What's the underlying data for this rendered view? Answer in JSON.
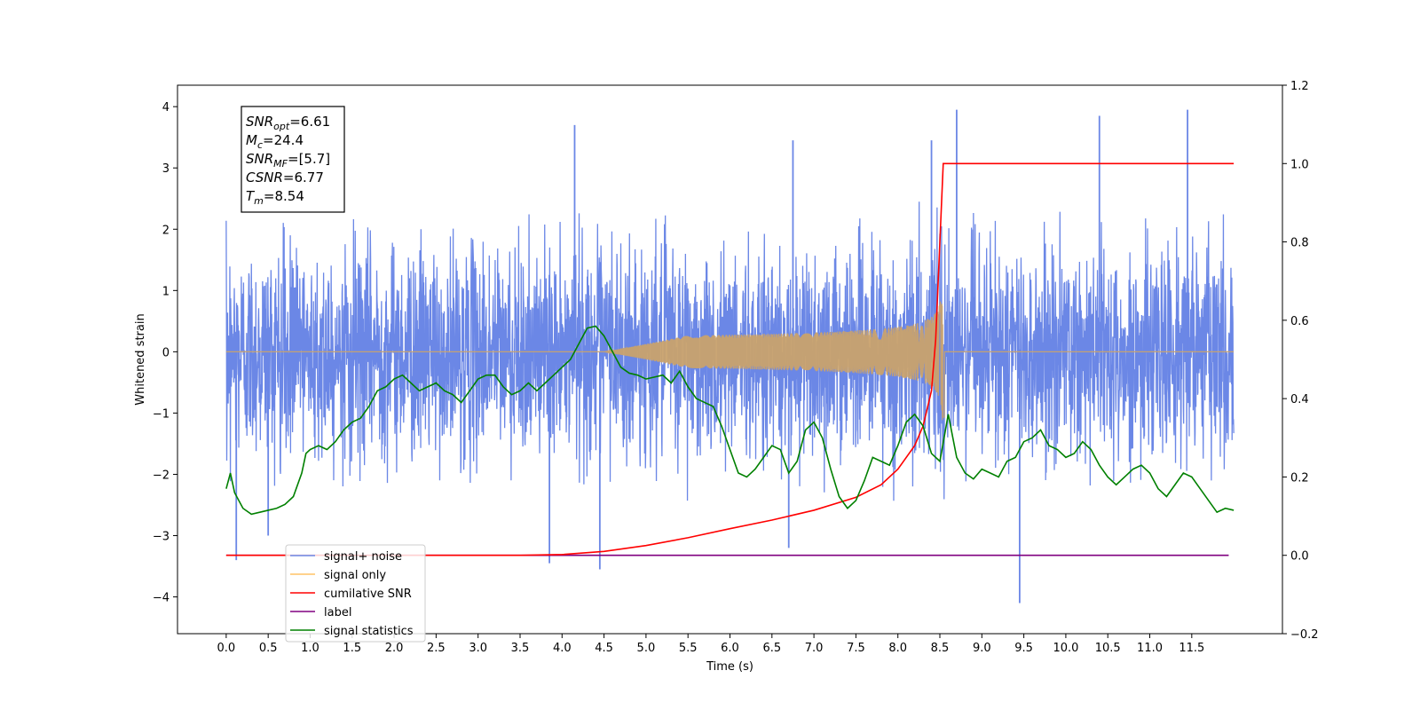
{
  "chart_data": {
    "type": "line",
    "title": "",
    "xlabel": "Time (s)",
    "ylabel": "Whitened strain",
    "xlim": [
      -0.58,
      12.58
    ],
    "ylim": [
      -4.6,
      4.35
    ],
    "y2lim": [
      -0.2,
      1.2
    ],
    "xticks": [
      0.0,
      0.5,
      1.0,
      1.5,
      2.0,
      2.5,
      3.0,
      3.5,
      4.0,
      4.5,
      5.0,
      5.5,
      6.0,
      6.5,
      7.0,
      7.5,
      8.0,
      8.5,
      9.0,
      9.5,
      10.0,
      10.5,
      11.0,
      11.5
    ],
    "xtick_labels": [
      "0.0",
      "0.5",
      "1.0",
      "1.5",
      "2.0",
      "2.5",
      "3.0",
      "3.5",
      "4.0",
      "4.5",
      "5.0",
      "5.5",
      "6.0",
      "6.5",
      "7.0",
      "7.5",
      "8.0",
      "8.5",
      "9.0",
      "9.5",
      "10.0",
      "10.5",
      "11.0",
      "11.5"
    ],
    "yticks": [
      -4,
      -3,
      -2,
      -1,
      0,
      1,
      2,
      3,
      4
    ],
    "ytick_labels": [
      "−4",
      "−3",
      "−2",
      "−1",
      "0",
      "1",
      "2",
      "3",
      "4"
    ],
    "y2ticks": [
      -0.2,
      0.0,
      0.2,
      0.4,
      0.6,
      0.8,
      1.0,
      1.2
    ],
    "y2tick_labels": [
      "−0.2",
      "0.0",
      "0.2",
      "0.4",
      "0.6",
      "0.8",
      "1.0",
      "1.2"
    ],
    "grid": false,
    "legend_position": "lower-left",
    "legend": [
      {
        "label": "signal+ noise",
        "color": "#6b87e6"
      },
      {
        "label": "signal only",
        "color": "#ffc466"
      },
      {
        "label": "cumilative SNR",
        "color": "#ff0000"
      },
      {
        "label": "label",
        "color": "#800080"
      },
      {
        "label": "signal statistics",
        "color": "#008000"
      }
    ],
    "annotation": [
      {
        "sym": "SNR",
        "sub": "opt",
        "text": "=6.61"
      },
      {
        "sym": "M",
        "sub": "c",
        "text": "=24.4"
      },
      {
        "sym": "SNR",
        "sub": "MF",
        "text": "=[5.7]"
      },
      {
        "sym": "CSNR",
        "sub": "",
        "text": "=6.77"
      },
      {
        "sym": "T",
        "sub": "m",
        "text": "=8.54"
      }
    ],
    "series": [
      {
        "name": "signal+ noise",
        "axis": "left",
        "color": "#6b87e6",
        "x_range": [
          0.0,
          12.0
        ],
        "noise_envelope": [
          -2.2,
          2.3
        ],
        "extreme_spikes": [
          {
            "x": 0.12,
            "y": -3.4
          },
          {
            "x": 0.5,
            "y": -3.0
          },
          {
            "x": 3.85,
            "y": -3.45
          },
          {
            "x": 4.15,
            "y": 3.7
          },
          {
            "x": 4.45,
            "y": -3.55
          },
          {
            "x": 6.7,
            "y": -3.2
          },
          {
            "x": 8.7,
            "y": 3.95
          },
          {
            "x": 9.45,
            "y": -4.1
          },
          {
            "x": 11.45,
            "y": 3.95
          },
          {
            "x": 10.4,
            "y": 3.85
          },
          {
            "x": 8.4,
            "y": 3.45
          },
          {
            "x": 6.75,
            "y": 3.45
          }
        ]
      },
      {
        "name": "signal only",
        "axis": "left",
        "color": "#ffc466",
        "chirp": {
          "start": 4.5,
          "merger": 8.54,
          "end": 12.0,
          "peak_amplitude": 1.4
        }
      },
      {
        "name": "cumilative SNR",
        "axis": "right",
        "color": "#ff0000",
        "x": [
          0.0,
          3.5,
          4.0,
          4.5,
          5.0,
          5.5,
          6.0,
          6.5,
          7.0,
          7.5,
          7.8,
          8.0,
          8.2,
          8.3,
          8.4,
          8.45,
          8.5,
          8.54,
          12.0
        ],
        "y": [
          0.0,
          0.0,
          0.002,
          0.01,
          0.025,
          0.045,
          0.068,
          0.09,
          0.115,
          0.148,
          0.18,
          0.22,
          0.28,
          0.33,
          0.42,
          0.55,
          0.8,
          1.0,
          1.0
        ]
      },
      {
        "name": "label",
        "axis": "right",
        "color": "#800080",
        "x": [
          0.0,
          11.94
        ],
        "y": [
          0.0,
          0.0
        ]
      },
      {
        "name": "signal statistics",
        "axis": "right",
        "color": "#008000",
        "x": [
          0.0,
          0.05,
          0.1,
          0.2,
          0.3,
          0.4,
          0.5,
          0.6,
          0.7,
          0.8,
          0.9,
          0.95,
          1.0,
          1.1,
          1.2,
          1.3,
          1.4,
          1.5,
          1.6,
          1.7,
          1.8,
          1.9,
          2.0,
          2.1,
          2.2,
          2.3,
          2.4,
          2.5,
          2.6,
          2.7,
          2.8,
          2.9,
          3.0,
          3.1,
          3.2,
          3.3,
          3.4,
          3.5,
          3.6,
          3.7,
          3.8,
          3.9,
          4.0,
          4.1,
          4.2,
          4.3,
          4.4,
          4.5,
          4.6,
          4.7,
          4.8,
          4.9,
          5.0,
          5.1,
          5.2,
          5.3,
          5.4,
          5.5,
          5.6,
          5.7,
          5.8,
          5.9,
          6.0,
          6.1,
          6.2,
          6.3,
          6.4,
          6.5,
          6.6,
          6.7,
          6.8,
          6.9,
          7.0,
          7.1,
          7.2,
          7.3,
          7.4,
          7.5,
          7.6,
          7.7,
          7.8,
          7.9,
          8.0,
          8.1,
          8.2,
          8.3,
          8.4,
          8.5,
          8.6,
          8.7,
          8.8,
          8.9,
          9.0,
          9.1,
          9.2,
          9.3,
          9.4,
          9.5,
          9.6,
          9.7,
          9.8,
          9.9,
          10.0,
          10.1,
          10.2,
          10.3,
          10.4,
          10.5,
          10.6,
          10.7,
          10.8,
          10.9,
          11.0,
          11.1,
          11.2,
          11.3,
          11.4,
          11.5,
          11.6,
          11.7,
          11.8,
          11.9,
          12.0
        ],
        "y": [
          0.17,
          0.21,
          0.16,
          0.12,
          0.105,
          0.11,
          0.115,
          0.12,
          0.13,
          0.15,
          0.21,
          0.26,
          0.27,
          0.28,
          0.27,
          0.29,
          0.32,
          0.34,
          0.35,
          0.38,
          0.42,
          0.43,
          0.45,
          0.46,
          0.44,
          0.42,
          0.43,
          0.44,
          0.42,
          0.41,
          0.39,
          0.42,
          0.45,
          0.46,
          0.46,
          0.43,
          0.41,
          0.42,
          0.44,
          0.42,
          0.44,
          0.46,
          0.48,
          0.5,
          0.54,
          0.58,
          0.585,
          0.56,
          0.52,
          0.48,
          0.465,
          0.46,
          0.45,
          0.455,
          0.46,
          0.44,
          0.47,
          0.43,
          0.4,
          0.39,
          0.38,
          0.33,
          0.27,
          0.21,
          0.2,
          0.22,
          0.25,
          0.28,
          0.27,
          0.21,
          0.24,
          0.32,
          0.34,
          0.3,
          0.22,
          0.15,
          0.12,
          0.14,
          0.19,
          0.25,
          0.24,
          0.23,
          0.28,
          0.34,
          0.36,
          0.33,
          0.26,
          0.24,
          0.36,
          0.25,
          0.21,
          0.195,
          0.22,
          0.21,
          0.2,
          0.24,
          0.25,
          0.29,
          0.3,
          0.32,
          0.28,
          0.27,
          0.25,
          0.26,
          0.29,
          0.27,
          0.23,
          0.2,
          0.18,
          0.2,
          0.22,
          0.23,
          0.21,
          0.17,
          0.15,
          0.18,
          0.21,
          0.2,
          0.17,
          0.14,
          0.11,
          0.12,
          0.115
        ]
      }
    ]
  }
}
